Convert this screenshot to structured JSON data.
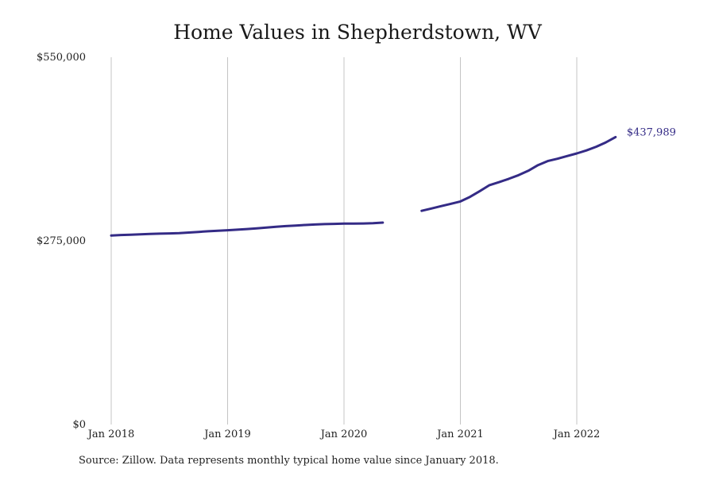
{
  "chart_data": {
    "type": "line",
    "title": "Home Values in Shepherdstown, WV",
    "source": "Source: Zillow. Data represents monthly typical home value since January 2018.",
    "xlabel": "",
    "ylabel": "",
    "x_range": [
      "2018-01",
      "2022-05"
    ],
    "ylim": [
      0,
      550000
    ],
    "y_ticks": [
      {
        "value": 0,
        "label": "$0"
      },
      {
        "value": 275000,
        "label": "$275,000"
      },
      {
        "value": 550000,
        "label": "$550,000"
      }
    ],
    "x_ticks": [
      {
        "date": "2018-01",
        "label": "Jan 2018"
      },
      {
        "date": "2019-01",
        "label": "Jan 2019"
      },
      {
        "date": "2020-01",
        "label": "Jan 2020"
      },
      {
        "date": "2021-01",
        "label": "Jan 2021"
      },
      {
        "date": "2022-01",
        "label": "Jan 2022"
      }
    ],
    "grid": {
      "vertical": true,
      "horizontal": false
    },
    "line_color": "#342b86",
    "end_label": {
      "date": "2022-05",
      "value": 437989,
      "text": "$437,989"
    },
    "series": [
      {
        "segments": [
          [
            [
              "2018-01",
              283000
            ],
            [
              "2018-02",
              283800
            ],
            [
              "2018-03",
              284300
            ],
            [
              "2018-04",
              284800
            ],
            [
              "2018-05",
              285300
            ],
            [
              "2018-06",
              285800
            ],
            [
              "2018-07",
              286200
            ],
            [
              "2018-08",
              286700
            ],
            [
              "2018-09",
              287500
            ],
            [
              "2018-10",
              288500
            ],
            [
              "2018-11",
              289400
            ],
            [
              "2018-12",
              290200
            ],
            [
              "2019-01",
              291000
            ],
            [
              "2019-02",
              291800
            ],
            [
              "2019-03",
              292700
            ],
            [
              "2019-04",
              293700
            ],
            [
              "2019-05",
              294900
            ],
            [
              "2019-06",
              296100
            ],
            [
              "2019-07",
              297100
            ],
            [
              "2019-08",
              298000
            ],
            [
              "2019-09",
              298800
            ],
            [
              "2019-10",
              299500
            ],
            [
              "2019-11",
              300100
            ],
            [
              "2019-12",
              300500
            ],
            [
              "2020-01",
              300800
            ],
            [
              "2020-02",
              301000
            ],
            [
              "2020-03",
              301100
            ],
            [
              "2020-04",
              301400
            ],
            [
              "2020-05",
              302400
            ]
          ],
          [
            [
              "2020-09",
              320000
            ],
            [
              "2020-10",
              323500
            ],
            [
              "2020-11",
              327000
            ],
            [
              "2020-12",
              330500
            ],
            [
              "2021-01",
              334000
            ],
            [
              "2021-02",
              341000
            ],
            [
              "2021-03",
              349500
            ],
            [
              "2021-04",
              358500
            ],
            [
              "2021-05",
              363000
            ],
            [
              "2021-06",
              368000
            ],
            [
              "2021-07",
              373500
            ],
            [
              "2021-08",
              380000
            ],
            [
              "2021-09",
              388500
            ],
            [
              "2021-10",
              394500
            ],
            [
              "2021-11",
              398000
            ],
            [
              "2021-12",
              402000
            ],
            [
              "2022-01",
              405900
            ],
            [
              "2022-02",
              410500
            ],
            [
              "2022-03",
              416000
            ],
            [
              "2022-04",
              422500
            ],
            [
              "2022-05",
              430500
            ]
          ]
        ]
      }
    ]
  }
}
